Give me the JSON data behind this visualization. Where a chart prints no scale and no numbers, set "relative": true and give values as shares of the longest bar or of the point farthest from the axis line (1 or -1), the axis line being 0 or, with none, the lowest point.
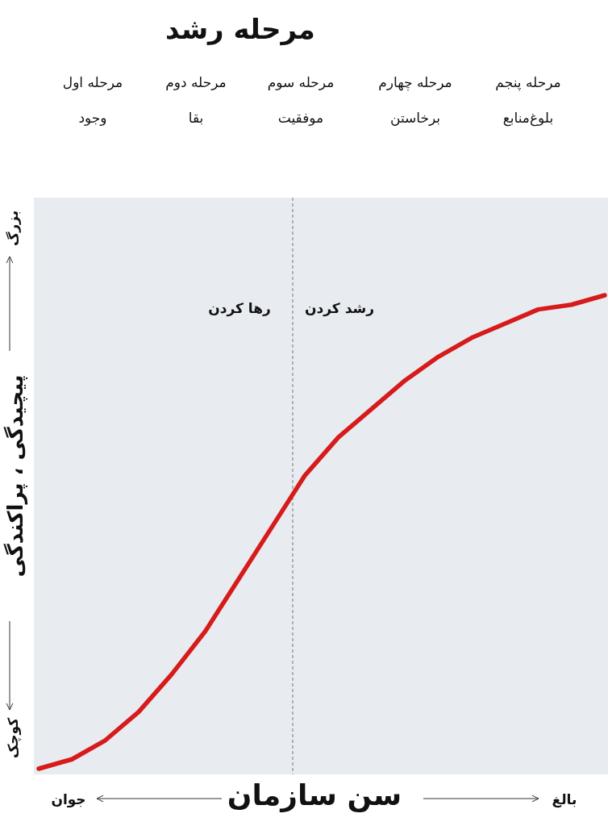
{
  "chart_data": {
    "type": "line",
    "title": "مرحله رشد",
    "xlabel": "سن سازمان",
    "ylabel": "پیچیدگی ، پراکندگی",
    "annotations": [
      "مرحله اول",
      "وجود",
      "مرحله دوم",
      "بقا",
      "مرحله سوم",
      "موفقیت",
      "مرحله چهارم",
      "برخاستن",
      "مرحله پنجم",
      "بلوغ‌منابع",
      "رها کردن",
      "رشد کردن",
      "کوچک",
      "بزرگ",
      "جوان",
      "بالغ"
    ],
    "categories": [
      null,
      null,
      null,
      null,
      null,
      null,
      null,
      null,
      null,
      null,
      null,
      null,
      null,
      null,
      null,
      null,
      null,
      null
    ],
    "relative": true,
    "series": [
      {
        "color": "#d71a1a",
        "values": [
          0,
          0.02,
          0.06,
          0.12,
          0.2,
          0.29,
          0.4,
          0.51,
          0.62,
          0.7,
          0.76,
          0.82,
          0.87,
          0.91,
          0.94,
          0.97,
          0.98,
          1
        ]
      }
    ],
    "marker": "none",
    "line_style": "solid"
  }
}
